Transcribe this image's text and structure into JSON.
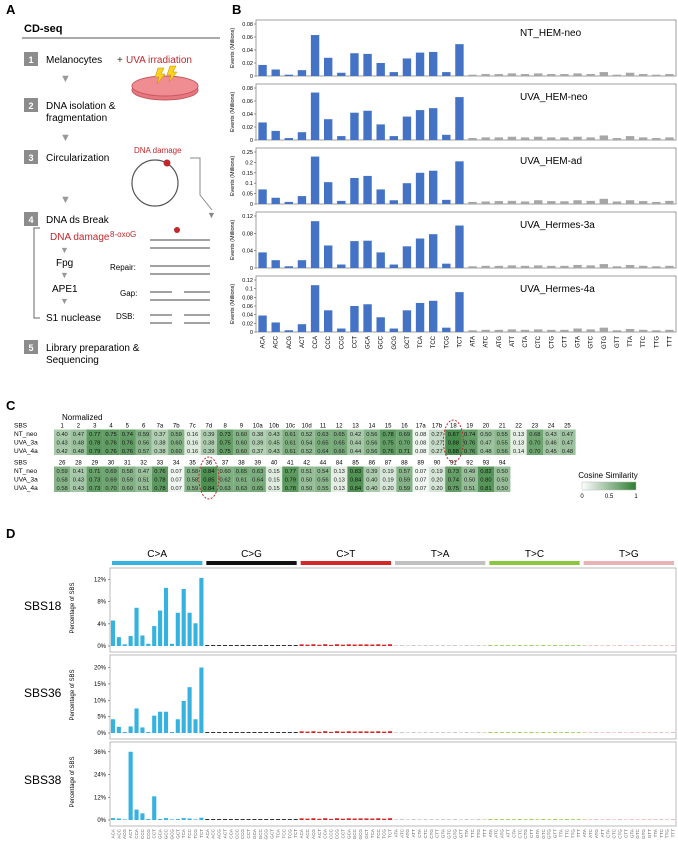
{
  "panels": {
    "A": "A",
    "B": "B",
    "C": "C",
    "D": "D"
  },
  "panel_a": {
    "title": "CD-seq",
    "steps": [
      {
        "n": "1",
        "text": "Melanocytes"
      },
      {
        "n": "2",
        "text": "DNA isolation &"
      },
      {
        "n": "2b",
        "text": "fragmentation"
      },
      {
        "n": "3",
        "text": "Circularization"
      },
      {
        "n": "4",
        "text": "DNA ds Break"
      },
      {
        "n": "5",
        "text": "Library preparation &"
      },
      {
        "n": "5b",
        "text": "Sequencing"
      }
    ],
    "uva_label": "UVA irradiation",
    "dna_damage_label": "DNA damage",
    "pathway": [
      "DNA damage",
      "Fpg",
      "APE1",
      "S1 nuclease"
    ],
    "oxog_label": "8-oxoG",
    "repair_labels": [
      "Repair:",
      "Gap:",
      "DSB:"
    ],
    "plus": "+"
  },
  "panel_b": {
    "ylabel": "Events (Millions)",
    "contexts": [
      "ACA",
      "ACC",
      "ACG",
      "ACT",
      "CCA",
      "CCC",
      "CCG",
      "CCT",
      "GCA",
      "GCC",
      "GCG",
      "GCT",
      "TCA",
      "TCC",
      "TCG",
      "TCT",
      "ATA",
      "ATC",
      "ATG",
      "ATT",
      "CTA",
      "CTC",
      "CTG",
      "CTT",
      "GTA",
      "GTC",
      "GTG",
      "GTT",
      "TTA",
      "TTC",
      "TTG",
      "TTT"
    ],
    "colors": {
      "c": "#4472c4",
      "t": "#a6a6a6"
    },
    "rows": [
      {
        "name": "NT_HEM-neo",
        "ymax": 0.08,
        "ticks": [
          "0.08",
          "0.06",
          "0.04",
          "0.02",
          "0"
        ],
        "values": [
          0.017,
          0.01,
          0.002,
          0.009,
          0.063,
          0.028,
          0.005,
          0.035,
          0.034,
          0.02,
          0.006,
          0.027,
          0.036,
          0.037,
          0.006,
          0.049,
          0.002,
          0.003,
          0.003,
          0.004,
          0.003,
          0.004,
          0.003,
          0.003,
          0.004,
          0.003,
          0.006,
          0.002,
          0.005,
          0.003,
          0.002,
          0.003
        ]
      },
      {
        "name": "UVA_HEM-neo",
        "ymax": 0.08,
        "ticks": [
          "0.08",
          "0.06",
          "0.04",
          "0.02",
          "0"
        ],
        "values": [
          0.027,
          0.014,
          0.003,
          0.012,
          0.073,
          0.032,
          0.006,
          0.042,
          0.045,
          0.024,
          0.006,
          0.036,
          0.046,
          0.049,
          0.008,
          0.066,
          0.003,
          0.004,
          0.004,
          0.005,
          0.004,
          0.005,
          0.004,
          0.004,
          0.005,
          0.004,
          0.007,
          0.003,
          0.006,
          0.004,
          0.003,
          0.004
        ]
      },
      {
        "name": "UVA_HEM-ad",
        "ymax": 0.25,
        "ticks": [
          "0.25",
          "0.2",
          "0.15",
          "0.1",
          "0.05",
          "0"
        ],
        "values": [
          0.07,
          0.03,
          0.01,
          0.038,
          0.228,
          0.105,
          0.015,
          0.125,
          0.135,
          0.07,
          0.018,
          0.1,
          0.15,
          0.16,
          0.02,
          0.205,
          0.01,
          0.012,
          0.014,
          0.015,
          0.012,
          0.018,
          0.014,
          0.013,
          0.018,
          0.015,
          0.025,
          0.012,
          0.018,
          0.014,
          0.01,
          0.015
        ]
      },
      {
        "name": "UVA_Hermes-3a",
        "ymax": 0.12,
        "ticks": [
          "0.12",
          "0.08",
          "0.04",
          "0"
        ],
        "values": [
          0.036,
          0.018,
          0.004,
          0.018,
          0.108,
          0.052,
          0.008,
          0.062,
          0.063,
          0.036,
          0.008,
          0.05,
          0.068,
          0.078,
          0.01,
          0.098,
          0.004,
          0.005,
          0.005,
          0.006,
          0.005,
          0.006,
          0.005,
          0.005,
          0.007,
          0.006,
          0.009,
          0.004,
          0.007,
          0.005,
          0.004,
          0.005
        ]
      },
      {
        "name": "UVA_Hermes-4a",
        "ymax": 0.12,
        "ticks": [
          "0.12",
          "0.1",
          "0.08",
          "0.06",
          "0.04",
          "0.02",
          "0"
        ],
        "values": [
          0.038,
          0.022,
          0.004,
          0.018,
          0.108,
          0.05,
          0.008,
          0.06,
          0.064,
          0.034,
          0.008,
          0.05,
          0.067,
          0.072,
          0.01,
          0.092,
          0.004,
          0.005,
          0.005,
          0.006,
          0.005,
          0.006,
          0.005,
          0.005,
          0.008,
          0.006,
          0.01,
          0.004,
          0.007,
          0.005,
          0.004,
          0.005
        ]
      }
    ]
  },
  "panel_c": {
    "normalized_label": "Normalized",
    "legend_title": "Cosine Similarity",
    "legend_ticks": [
      "0",
      "0.5",
      "1"
    ],
    "row_names": [
      "SBS",
      "NT_neo",
      "UVA_3a",
      "UVA_4a"
    ],
    "block1": {
      "headers": [
        "1",
        "2",
        "3",
        "4",
        "5",
        "6",
        "7a",
        "7b",
        "7c",
        "7d",
        "8",
        "9",
        "10a",
        "10b",
        "10c",
        "10d",
        "11",
        "12",
        "13",
        "14",
        "15",
        "16",
        "17a",
        "17b",
        "18",
        "19",
        "20",
        "21",
        "22",
        "23",
        "24",
        "25"
      ],
      "rows": [
        [
          0.4,
          0.47,
          0.77,
          0.75,
          0.74,
          0.59,
          0.37,
          0.59,
          0.16,
          0.39,
          0.73,
          0.6,
          0.38,
          0.43,
          0.61,
          0.52,
          0.63,
          0.65,
          0.42,
          0.56,
          0.78,
          0.69,
          0.08,
          0.27,
          0.87,
          0.74,
          0.5,
          0.55,
          0.13,
          0.68,
          0.43,
          0.47
        ],
        [
          0.43,
          0.48,
          0.78,
          0.76,
          0.76,
          0.56,
          0.38,
          0.6,
          0.16,
          0.38,
          0.75,
          0.6,
          0.39,
          0.45,
          0.61,
          0.54,
          0.65,
          0.65,
          0.44,
          0.56,
          0.75,
          0.7,
          0.08,
          0.27,
          0.88,
          0.76,
          0.47,
          0.55,
          0.13,
          0.7,
          0.46,
          0.47
        ],
        [
          0.42,
          0.48,
          0.79,
          0.76,
          0.76,
          0.57,
          0.38,
          0.6,
          0.16,
          0.39,
          0.75,
          0.6,
          0.37,
          0.43,
          0.61,
          0.52,
          0.64,
          0.66,
          0.44,
          0.56,
          0.76,
          0.71,
          0.08,
          0.27,
          0.88,
          0.76,
          0.48,
          0.56,
          0.14,
          0.7,
          0.45,
          0.48
        ]
      ]
    },
    "block2": {
      "headers": [
        "26",
        "28",
        "29",
        "30",
        "31",
        "32",
        "33",
        "34",
        "35",
        "36",
        "37",
        "38",
        "39",
        "40",
        "41",
        "42",
        "44",
        "84",
        "85",
        "86",
        "87",
        "88",
        "89",
        "90",
        "91",
        "92",
        "93",
        "94"
      ],
      "rows": [
        [
          0.59,
          0.41,
          0.71,
          0.69,
          0.58,
          0.47,
          0.76,
          0.07,
          0.58,
          0.84,
          0.6,
          0.65,
          0.63,
          0.15,
          0.77,
          0.51,
          0.54,
          0.13,
          0.83,
          0.39,
          0.19,
          0.57,
          0.07,
          0.19,
          0.73,
          0.49,
          0.82,
          0.5
        ],
        [
          0.58,
          0.43,
          0.73,
          0.69,
          0.59,
          0.51,
          0.78,
          0.07,
          0.58,
          0.85,
          0.62,
          0.61,
          0.64,
          0.15,
          0.79,
          0.5,
          0.56,
          0.13,
          0.84,
          0.4,
          0.19,
          0.59,
          0.07,
          0.2,
          0.74,
          0.5,
          0.8,
          0.5
        ],
        [
          0.58,
          0.43,
          0.73,
          0.7,
          0.6,
          0.51,
          0.78,
          0.07,
          0.59,
          0.84,
          0.63,
          0.63,
          0.65,
          0.15,
          0.78,
          0.5,
          0.55,
          0.13,
          0.84,
          0.4,
          0.2,
          0.59,
          0.07,
          0.2,
          0.75,
          0.51,
          0.81,
          0.5
        ]
      ]
    }
  },
  "panel_d": {
    "groups": [
      {
        "label": "C>A",
        "color": "#35b2e0"
      },
      {
        "label": "C>G",
        "color": "#111111"
      },
      {
        "label": "C>T",
        "color": "#d62728"
      },
      {
        "label": "T>A",
        "color": "#c0c0c0"
      },
      {
        "label": "T>C",
        "color": "#8cc63f"
      },
      {
        "label": "T>G",
        "color": "#e8b4b8"
      }
    ],
    "ylabel": "Percentage of SBS",
    "contexts_C": [
      "ACA",
      "ACC",
      "ACG",
      "ACT",
      "CCA",
      "CCC",
      "CCG",
      "CCT",
      "GCA",
      "GCC",
      "GCG",
      "GCT",
      "TCA",
      "TCC",
      "TCG",
      "TCT"
    ],
    "contexts_T": [
      "ATA",
      "ATC",
      "ATG",
      "ATT",
      "CTA",
      "CTC",
      "CTG",
      "CTT",
      "GTA",
      "GTC",
      "GTG",
      "GTT",
      "TTA",
      "TTC",
      "TTG",
      "TTT"
    ],
    "signatures": [
      {
        "name": "SBS18",
        "ymax": 13,
        "ticks": [
          "12%",
          "8%",
          "4%",
          "0%"
        ],
        "tickvals": [
          12,
          8,
          4,
          0
        ],
        "ca": [
          4.6,
          1.6,
          0.3,
          1.8,
          6.9,
          1.9,
          0.4,
          3.6,
          6.4,
          10.5,
          0.4,
          6.0,
          10.3,
          6.0,
          4.1,
          12.3
        ]
      },
      {
        "name": "SBS36",
        "ymax": 22,
        "ticks": [
          "20%",
          "15%",
          "10%",
          "5%",
          "0%"
        ],
        "tickvals": [
          20,
          15,
          10,
          5,
          0
        ],
        "ca": [
          4.2,
          1.9,
          0.3,
          2.0,
          7.5,
          1.7,
          0.3,
          5.3,
          6.5,
          6.5,
          0.3,
          4.2,
          9.8,
          14.0,
          4.2,
          20.0
        ]
      },
      {
        "name": "SBS38",
        "ymax": 38,
        "ticks": [
          "36%",
          "24%",
          "12%",
          "0%"
        ],
        "tickvals": [
          36,
          24,
          12,
          0
        ],
        "ca": [
          1.0,
          0.8,
          0.3,
          36.0,
          5.5,
          3.5,
          0.5,
          12.5,
          0.5,
          1.0,
          0.2,
          0.5,
          1.0,
          0.8,
          0.2,
          1.2
        ]
      }
    ]
  }
}
